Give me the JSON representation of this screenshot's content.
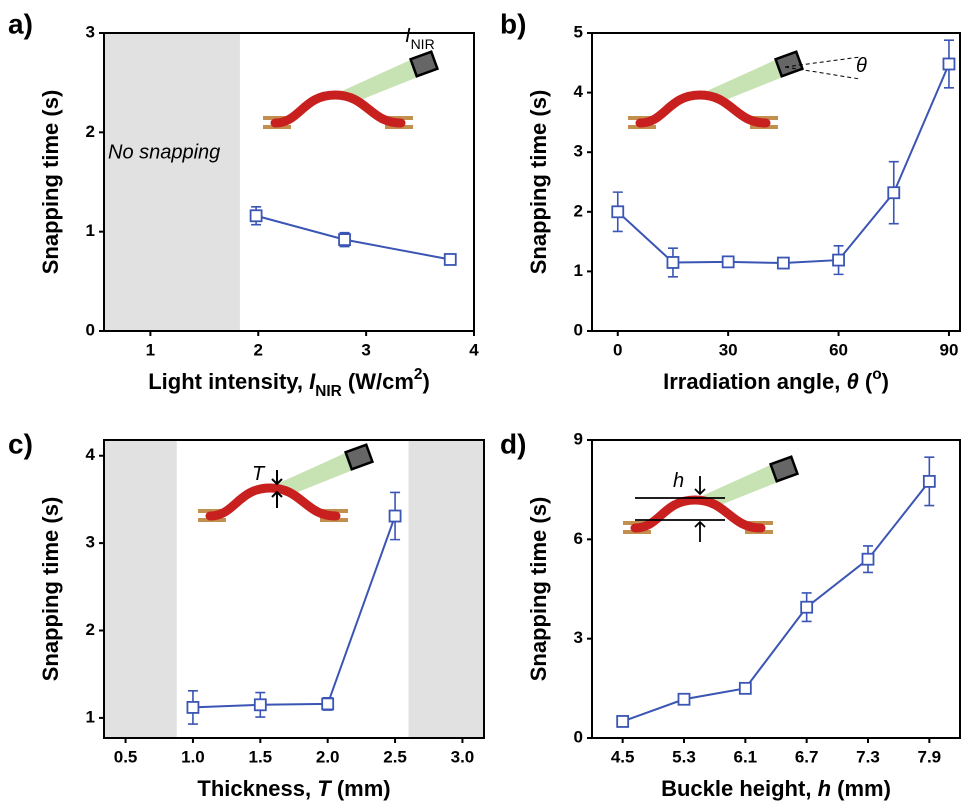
{
  "chart_data": [
    {
      "type": "line",
      "panel_label": "a)",
      "ylabel": "Snapping time (s)",
      "xlabel": [
        "Light intensity, ",
        "I",
        "NIR",
        " (W/cm",
        "2",
        ")"
      ],
      "inset_label": [
        "I",
        "NIR"
      ],
      "x": [
        1.98,
        2.8,
        3.78
      ],
      "series": [
        {
          "color": "#3a55b4",
          "values": [
            1.16,
            0.92,
            0.72
          ],
          "errors": [
            0.09,
            0.07,
            0.04
          ]
        }
      ],
      "xlim": [
        0.57,
        4
      ],
      "xticks": [
        1,
        2,
        3,
        4
      ],
      "ylim": [
        0,
        3
      ],
      "yticks": [
        0,
        1,
        2,
        3
      ],
      "shaded_regions": [
        [
          0.57,
          1.83
        ]
      ],
      "annotation": "No snapping"
    },
    {
      "type": "line",
      "panel_label": "b)",
      "ylabel": "Snapping time (s)",
      "xlabel": [
        "Irradiation angle, ",
        "θ",
        " (",
        "o",
        ")"
      ],
      "inset_label": [
        "θ"
      ],
      "x": [
        0,
        15,
        30,
        45,
        60,
        75,
        90
      ],
      "series": [
        {
          "color": "#3a55b4",
          "values": [
            2.0,
            1.15,
            1.16,
            1.14,
            1.19,
            2.32,
            4.48
          ],
          "errors": [
            0.33,
            0.24,
            0.07,
            0.07,
            0.24,
            0.52,
            0.4
          ]
        }
      ],
      "xlim": [
        -7,
        93
      ],
      "xticks": [
        0,
        30,
        60,
        90
      ],
      "ylim": [
        0,
        5
      ],
      "yticks": [
        0,
        1,
        2,
        3,
        4,
        5
      ]
    },
    {
      "type": "line",
      "panel_label": "c)",
      "ylabel": "Snapping time (s)",
      "xlabel": [
        "Thickness, ",
        "T",
        " (mm)"
      ],
      "inset_label": [
        "T"
      ],
      "x": [
        1.0,
        1.5,
        2.0,
        2.5
      ],
      "series": [
        {
          "color": "#3a55b4",
          "values": [
            1.12,
            1.15,
            1.16,
            3.31
          ],
          "errors": [
            0.19,
            0.14,
            0.07,
            0.27
          ]
        }
      ],
      "xlim": [
        0.34,
        3.16
      ],
      "xticks": [
        {
          "value": 0.5,
          "label": "0.5"
        },
        {
          "value": 1,
          "label": "1.0"
        },
        {
          "value": 1.5,
          "label": "1.5"
        },
        {
          "value": 2,
          "label": "2.0"
        },
        {
          "value": 2.5,
          "label": "2.5"
        },
        {
          "value": 3,
          "label": "3.0"
        }
      ],
      "ylim": [
        0.77,
        4.18
      ],
      "yticks": [
        1,
        2,
        3,
        4
      ],
      "shaded_regions": [
        [
          0.34,
          0.88
        ],
        [
          2.6,
          3.16
        ]
      ]
    },
    {
      "type": "line",
      "panel_label": "d)",
      "ylabel": "Snapping time (s)",
      "xlabel": [
        "Buckle height, ",
        "h",
        " (mm)"
      ],
      "inset_label": [
        "h"
      ],
      "categories": [
        "4.5",
        "5.3",
        "6.1",
        "6.7",
        "7.3",
        "7.9"
      ],
      "series": [
        {
          "color": "#3a55b4",
          "values": [
            0.5,
            1.17,
            1.5,
            3.95,
            5.4,
            7.75
          ],
          "errors": [
            0.08,
            0.1,
            0.15,
            0.43,
            0.4,
            0.73
          ]
        }
      ],
      "ylim": [
        0,
        9
      ],
      "yticks": [
        0,
        3,
        6,
        9
      ]
    }
  ]
}
